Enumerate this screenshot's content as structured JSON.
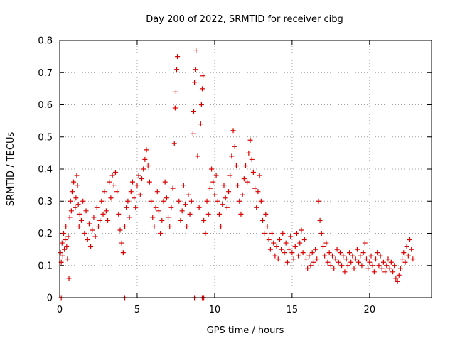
{
  "chart_data": {
    "type": "scatter",
    "title": "Day 200 of 2022, SRMTID for receiver cibg",
    "xlabel": "GPS time / hours",
    "ylabel": "SRMTID / TECUs",
    "xlim": [
      0,
      24
    ],
    "ylim": [
      0,
      0.8
    ],
    "x_ticks": [
      0,
      5,
      10,
      15,
      20
    ],
    "y_ticks": [
      0,
      0.1,
      0.2,
      0.3,
      0.4,
      0.5,
      0.6,
      0.7,
      0.8
    ],
    "x_tick_labels": [
      "0",
      "5",
      "10",
      "15",
      "20"
    ],
    "y_tick_labels": [
      "0",
      "0.1",
      "0.2",
      "0.3",
      "0.4",
      "0.5",
      "0.6",
      "0.7",
      "0.8"
    ],
    "grid": true,
    "marker": "+",
    "marker_color": "#dd0000",
    "series": [
      {
        "name": "SRMTID",
        "points": [
          [
            0.05,
            0.14
          ],
          [
            0.1,
            0.11
          ],
          [
            0.15,
            0.17
          ],
          [
            0.2,
            0.13
          ],
          [
            0.25,
            0.2
          ],
          [
            0.3,
            0.15
          ],
          [
            0.35,
            0.18
          ],
          [
            0.4,
            0.22
          ],
          [
            0.45,
            0.16
          ],
          [
            0.5,
            0.12
          ],
          [
            0.55,
            0.19
          ],
          [
            0.6,
            0.06
          ],
          [
            0.65,
            0.25
          ],
          [
            0.7,
            0.3
          ],
          [
            0.75,
            0.27
          ],
          [
            0.8,
            0.33
          ],
          [
            0.9,
            0.36
          ],
          [
            1.0,
            0.28
          ],
          [
            1.05,
            0.31
          ],
          [
            1.1,
            0.38
          ],
          [
            1.15,
            0.35
          ],
          [
            1.2,
            0.29
          ],
          [
            1.25,
            0.22
          ],
          [
            1.3,
            0.26
          ],
          [
            1.4,
            0.24
          ],
          [
            1.5,
            0.3
          ],
          [
            1.6,
            0.2
          ],
          [
            1.7,
            0.27
          ],
          [
            1.8,
            0.18
          ],
          [
            1.9,
            0.23
          ],
          [
            2.0,
            0.16
          ],
          [
            2.1,
            0.21
          ],
          [
            2.2,
            0.25
          ],
          [
            2.3,
            0.19
          ],
          [
            2.4,
            0.28
          ],
          [
            2.5,
            0.22
          ],
          [
            2.6,
            0.24
          ],
          [
            2.7,
            0.3
          ],
          [
            2.8,
            0.26
          ],
          [
            2.9,
            0.33
          ],
          [
            3.0,
            0.27
          ],
          [
            3.1,
            0.24
          ],
          [
            3.2,
            0.36
          ],
          [
            3.3,
            0.31
          ],
          [
            3.4,
            0.38
          ],
          [
            3.5,
            0.35
          ],
          [
            3.6,
            0.39
          ],
          [
            3.7,
            0.33
          ],
          [
            3.8,
            0.26
          ],
          [
            3.9,
            0.21
          ],
          [
            4.0,
            0.17
          ],
          [
            4.1,
            0.14
          ],
          [
            4.2,
            0.22
          ],
          [
            4.3,
            0.28
          ],
          [
            4.4,
            0.3
          ],
          [
            4.5,
            0.25
          ],
          [
            4.6,
            0.33
          ],
          [
            4.7,
            0.36
          ],
          [
            4.8,
            0.31
          ],
          [
            4.9,
            0.28
          ],
          [
            5.0,
            0.35
          ],
          [
            5.1,
            0.38
          ],
          [
            5.2,
            0.32
          ],
          [
            5.3,
            0.37
          ],
          [
            5.4,
            0.4
          ],
          [
            5.5,
            0.43
          ],
          [
            5.6,
            0.46
          ],
          [
            5.7,
            0.41
          ],
          [
            5.8,
            0.36
          ],
          [
            5.9,
            0.3
          ],
          [
            6.0,
            0.25
          ],
          [
            6.1,
            0.22
          ],
          [
            6.2,
            0.28
          ],
          [
            6.3,
            0.33
          ],
          [
            6.4,
            0.27
          ],
          [
            6.5,
            0.2
          ],
          [
            6.6,
            0.24
          ],
          [
            6.7,
            0.3
          ],
          [
            6.8,
            0.36
          ],
          [
            6.9,
            0.31
          ],
          [
            7.0,
            0.25
          ],
          [
            7.1,
            0.22
          ],
          [
            7.2,
            0.28
          ],
          [
            7.3,
            0.34
          ],
          [
            7.4,
            0.48
          ],
          [
            7.45,
            0.59
          ],
          [
            7.5,
            0.64
          ],
          [
            7.55,
            0.71
          ],
          [
            7.6,
            0.75
          ],
          [
            7.7,
            0.3
          ],
          [
            7.8,
            0.24
          ],
          [
            7.9,
            0.27
          ],
          [
            8.0,
            0.35
          ],
          [
            8.1,
            0.29
          ],
          [
            8.2,
            0.22
          ],
          [
            8.3,
            0.32
          ],
          [
            8.4,
            0.26
          ],
          [
            8.5,
            0.3
          ],
          [
            8.6,
            0.51
          ],
          [
            8.65,
            0.58
          ],
          [
            8.7,
            0.67
          ],
          [
            8.75,
            0.71
          ],
          [
            8.8,
            0.77
          ],
          [
            8.9,
            0.44
          ],
          [
            9.0,
            0.28
          ],
          [
            9.1,
            0.54
          ],
          [
            9.15,
            0.6
          ],
          [
            9.2,
            0.65
          ],
          [
            9.25,
            0.69
          ],
          [
            9.3,
            0.24
          ],
          [
            9.4,
            0.2
          ],
          [
            9.5,
            0.3
          ],
          [
            9.6,
            0.26
          ],
          [
            9.7,
            0.34
          ],
          [
            9.8,
            0.4
          ],
          [
            9.9,
            0.36
          ],
          [
            10.0,
            0.32
          ],
          [
            10.1,
            0.38
          ],
          [
            10.2,
            0.3
          ],
          [
            10.3,
            0.26
          ],
          [
            10.4,
            0.22
          ],
          [
            10.5,
            0.29
          ],
          [
            10.6,
            0.35
          ],
          [
            10.7,
            0.31
          ],
          [
            10.8,
            0.28
          ],
          [
            10.9,
            0.33
          ],
          [
            11.0,
            0.38
          ],
          [
            11.1,
            0.44
          ],
          [
            11.2,
            0.52
          ],
          [
            11.3,
            0.47
          ],
          [
            11.4,
            0.41
          ],
          [
            11.5,
            0.35
          ],
          [
            11.6,
            0.3
          ],
          [
            11.7,
            0.26
          ],
          [
            11.8,
            0.32
          ],
          [
            11.9,
            0.37
          ],
          [
            12.0,
            0.41
          ],
          [
            12.1,
            0.36
          ],
          [
            12.2,
            0.45
          ],
          [
            12.3,
            0.49
          ],
          [
            12.4,
            0.43
          ],
          [
            12.5,
            0.39
          ],
          [
            12.6,
            0.34
          ],
          [
            12.7,
            0.28
          ],
          [
            12.8,
            0.33
          ],
          [
            12.9,
            0.38
          ],
          [
            13.0,
            0.3
          ],
          [
            13.1,
            0.24
          ],
          [
            13.2,
            0.2
          ],
          [
            13.3,
            0.26
          ],
          [
            13.4,
            0.22
          ],
          [
            13.5,
            0.18
          ],
          [
            13.6,
            0.15
          ],
          [
            13.7,
            0.2
          ],
          [
            13.8,
            0.17
          ],
          [
            13.9,
            0.13
          ],
          [
            14.0,
            0.16
          ],
          [
            14.1,
            0.12
          ],
          [
            14.2,
            0.18
          ],
          [
            14.3,
            0.15
          ],
          [
            14.4,
            0.2
          ],
          [
            14.5,
            0.14
          ],
          [
            14.6,
            0.17
          ],
          [
            14.7,
            0.11
          ],
          [
            14.8,
            0.15
          ],
          [
            14.9,
            0.19
          ],
          [
            15.0,
            0.14
          ],
          [
            15.1,
            0.12
          ],
          [
            15.2,
            0.16
          ],
          [
            15.3,
            0.2
          ],
          [
            15.4,
            0.13
          ],
          [
            15.5,
            0.17
          ],
          [
            15.6,
            0.21
          ],
          [
            15.7,
            0.14
          ],
          [
            15.8,
            0.18
          ],
          [
            15.9,
            0.12
          ],
          [
            16.0,
            0.09
          ],
          [
            16.1,
            0.13
          ],
          [
            16.2,
            0.1
          ],
          [
            16.3,
            0.14
          ],
          [
            16.4,
            0.11
          ],
          [
            16.5,
            0.15
          ],
          [
            16.6,
            0.12
          ],
          [
            16.7,
            0.3
          ],
          [
            16.8,
            0.24
          ],
          [
            16.9,
            0.2
          ],
          [
            17.0,
            0.16
          ],
          [
            17.1,
            0.13
          ],
          [
            17.2,
            0.17
          ],
          [
            17.3,
            0.11
          ],
          [
            17.4,
            0.14
          ],
          [
            17.5,
            0.1
          ],
          [
            17.6,
            0.13
          ],
          [
            17.7,
            0.09
          ],
          [
            17.8,
            0.12
          ],
          [
            17.9,
            0.15
          ],
          [
            18.0,
            0.11
          ],
          [
            18.1,
            0.14
          ],
          [
            18.2,
            0.1
          ],
          [
            18.3,
            0.13
          ],
          [
            18.4,
            0.08
          ],
          [
            18.5,
            0.12
          ],
          [
            18.6,
            0.1
          ],
          [
            18.7,
            0.14
          ],
          [
            18.8,
            0.11
          ],
          [
            18.9,
            0.13
          ],
          [
            19.0,
            0.09
          ],
          [
            19.1,
            0.12
          ],
          [
            19.2,
            0.15
          ],
          [
            19.3,
            0.11
          ],
          [
            19.4,
            0.13
          ],
          [
            19.5,
            0.1
          ],
          [
            19.6,
            0.14
          ],
          [
            19.7,
            0.17
          ],
          [
            19.8,
            0.12
          ],
          [
            19.9,
            0.09
          ],
          [
            20.0,
            0.11
          ],
          [
            20.1,
            0.13
          ],
          [
            20.2,
            0.1
          ],
          [
            20.3,
            0.08
          ],
          [
            20.4,
            0.12
          ],
          [
            20.5,
            0.14
          ],
          [
            20.6,
            0.1
          ],
          [
            20.7,
            0.13
          ],
          [
            20.8,
            0.09
          ],
          [
            20.9,
            0.11
          ],
          [
            21.0,
            0.08
          ],
          [
            21.1,
            0.1
          ],
          [
            21.2,
            0.12
          ],
          [
            21.3,
            0.09
          ],
          [
            21.4,
            0.11
          ],
          [
            21.5,
            0.08
          ],
          [
            21.6,
            0.1
          ],
          [
            21.7,
            0.06
          ],
          [
            21.8,
            0.05
          ],
          [
            21.9,
            0.07
          ],
          [
            22.0,
            0.09
          ],
          [
            22.1,
            0.12
          ],
          [
            22.2,
            0.14
          ],
          [
            22.3,
            0.11
          ],
          [
            22.4,
            0.16
          ],
          [
            22.5,
            0.13
          ],
          [
            22.6,
            0.18
          ],
          [
            22.7,
            0.15
          ],
          [
            22.8,
            0.12
          ],
          [
            0.1,
            0.0
          ],
          [
            4.2,
            0.0
          ],
          [
            8.7,
            0.0
          ],
          [
            9.2,
            0.0
          ],
          [
            9.3,
            0.0
          ]
        ]
      }
    ]
  }
}
